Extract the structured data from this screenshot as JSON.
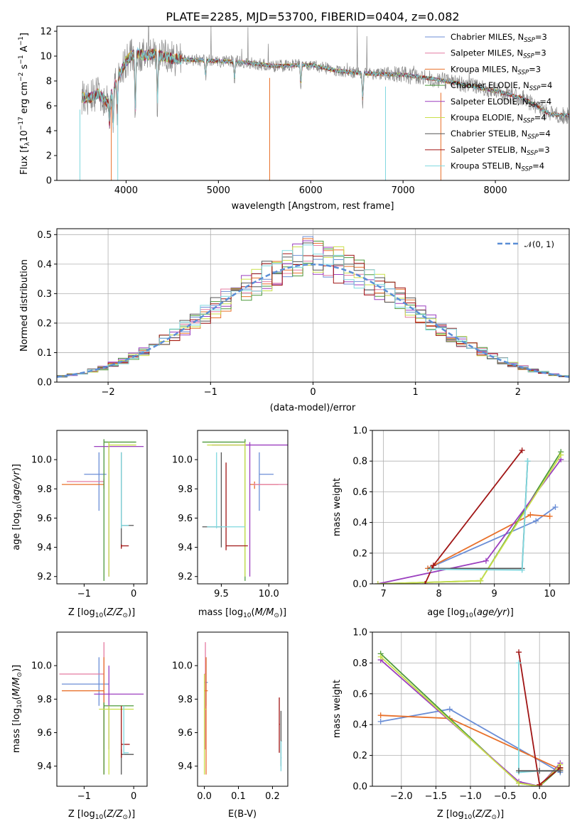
{
  "colors": {
    "chabrier_miles": "#6b8ed6",
    "salpeter_miles": "#e47ba1",
    "kroupa_miles": "#e8702a",
    "chabrier_elodie": "#4e9a3c",
    "salpeter_elodie": "#9b3fbf",
    "kroupa_elodie": "#c9e04a",
    "chabrier_stelib": "#555555",
    "salpeter_stelib": "#a01515",
    "kroupa_stelib": "#7fd8df",
    "gaussian": "#5a8ed6",
    "spectrum": "#888888"
  },
  "chart_data": [
    {
      "type": "line",
      "title": "PLATE=2285, MJD=53700, FIBERID=0404, z=0.082",
      "xlabel": "wavelength [Angstrom, rest frame]",
      "ylabel": "Flux [fλ10⁻¹⁷ erg cm⁻² s⁻¹ A⁻¹]",
      "xlim": [
        3250,
        8800
      ],
      "ylim": [
        0,
        12.4
      ],
      "xticks": [
        "4000",
        "5000",
        "6000",
        "7000",
        "8000"
      ],
      "yticks": [
        "0",
        "2",
        "4",
        "6",
        "8",
        "10",
        "12"
      ],
      "grid": false,
      "legend": "top-right",
      "legend_entries": [
        {
          "prefix": "Chabrier MILES, N",
          "sub": "SSP",
          "suffix": "=3"
        },
        {
          "prefix": "Salpeter MILES, N",
          "sub": "SSP",
          "suffix": "=3"
        },
        {
          "prefix": "Kroupa MILES, N",
          "sub": "SSP",
          "suffix": "=3"
        },
        {
          "prefix": "Chabrier ELODIE, N",
          "sub": "SSP",
          "suffix": "=4"
        },
        {
          "prefix": "Salpeter ELODIE, N",
          "sub": "SSP",
          "suffix": "=4"
        },
        {
          "prefix": "Kroupa ELODIE, N",
          "sub": "SSP",
          "suffix": "=4"
        },
        {
          "prefix": "Chabrier STELIB, N",
          "sub": "SSP",
          "suffix": "=4"
        },
        {
          "prefix": "Salpeter STELIB, N",
          "sub": "SSP",
          "suffix": "=3"
        },
        {
          "prefix": "Kroupa STELIB, N",
          "sub": "SSP",
          "suffix": "=4"
        }
      ],
      "continuum_x": [
        3520,
        3600,
        3700,
        3800,
        3900,
        4000,
        4100,
        4200,
        4300,
        4500,
        4700,
        5000,
        5300,
        5600,
        6000,
        6300,
        6600,
        7000,
        7300,
        7600,
        8000,
        8300,
        8600,
        8800
      ],
      "continuum_y": [
        6.7,
        6.6,
        7.0,
        6.2,
        8.0,
        9.6,
        10.3,
        10.0,
        10.2,
        9.8,
        9.7,
        9.6,
        9.5,
        9.2,
        9.3,
        8.8,
        8.6,
        8.5,
        8.2,
        7.8,
        7.2,
        6.6,
        5.3,
        5.2
      ],
      "dips_x": [
        3820,
        3860,
        3905,
        4100,
        4340,
        4860,
        5175,
        5893,
        6563
      ],
      "dips_y": [
        4.2,
        3.8,
        5.2,
        4.5,
        5.5,
        8.2,
        8.0,
        7.4,
        6.0
      ],
      "spikes_x": [
        3500,
        3840,
        3910,
        5555,
        6810,
        7410
      ],
      "spikes_y": [
        0.0,
        0.0,
        0.0,
        0.0,
        0.0,
        0.0
      ]
    },
    {
      "type": "bar",
      "xlabel": "(data-model)/error",
      "ylabel": "Normed distribution",
      "xlim": [
        -2.5,
        2.5
      ],
      "ylim": [
        0,
        0.52
      ],
      "xticks": [
        "−2",
        "−1",
        "0",
        "1",
        "2"
      ],
      "yticks": [
        "0.0",
        "0.1",
        "0.2",
        "0.3",
        "0.4",
        "0.5"
      ],
      "grid": true,
      "legend": "top-right",
      "gaussian_label": "𝒩(0, 1)",
      "bin_width": 0.1
    },
    {
      "type": "scatter",
      "xlabel": "Z [log10(Z/Z☉)]",
      "ylabel": "age [log10(age/yr)]",
      "xlim": [
        -1.55,
        0.27
      ],
      "ylim": [
        9.15,
        10.2
      ],
      "xticks": [
        "−1",
        "0"
      ],
      "yticks": [
        "9.2",
        "9.4",
        "9.6",
        "9.8",
        "10.0"
      ]
    },
    {
      "type": "scatter",
      "xlabel": "mass [log10(M/M☉)]",
      "xlim": [
        9.25,
        10.2
      ],
      "ylim": [
        9.15,
        10.2
      ],
      "xticks": [
        "9.5",
        "10.0"
      ],
      "yticks": [
        "9.2",
        "9.4",
        "9.6",
        "9.8",
        "10.0"
      ]
    },
    {
      "type": "line",
      "xlabel": "age [log10(age/yr)]",
      "ylabel": "mass weight",
      "xlim": [
        6.8,
        10.35
      ],
      "ylim": [
        0,
        1.0
      ],
      "xticks": [
        "7",
        "8",
        "9",
        "10"
      ],
      "yticks": [
        "0.0",
        "0.2",
        "0.4",
        "0.6",
        "0.8",
        "1.0"
      ],
      "grid": true,
      "series": [
        {
          "key": "chabrier_miles",
          "x": [
            7.8,
            9.75,
            10.1
          ],
          "y": [
            0.1,
            0.41,
            0.5
          ]
        },
        {
          "key": "kroupa_miles",
          "x": [
            7.8,
            9.65,
            10.0
          ],
          "y": [
            0.1,
            0.45,
            0.44
          ]
        },
        {
          "key": "chabrier_elodie",
          "x": [
            6.9,
            8.75,
            10.2
          ],
          "y": [
            0.0,
            0.02,
            0.86
          ]
        },
        {
          "key": "salpeter_elodie",
          "x": [
            6.9,
            8.85,
            10.2
          ],
          "y": [
            0.0,
            0.15,
            0.81
          ]
        },
        {
          "key": "kroupa_elodie",
          "x": [
            6.9,
            8.75,
            10.2
          ],
          "y": [
            0.0,
            0.02,
            0.84
          ]
        },
        {
          "key": "chabrier_stelib",
          "x": [
            7.85,
            9.5,
            9.6
          ],
          "y": [
            0.1,
            0.1,
            0.8
          ]
        },
        {
          "key": "salpeter_stelib",
          "x": [
            7.75,
            7.9,
            9.5
          ],
          "y": [
            0.0,
            0.12,
            0.87
          ]
        },
        {
          "key": "kroupa_stelib",
          "x": [
            7.85,
            9.5,
            9.6
          ],
          "y": [
            0.095,
            0.09,
            0.8
          ]
        }
      ]
    },
    {
      "type": "scatter",
      "xlabel": "Z [log10(Z/Z☉)]",
      "ylabel": "mass [log10(M/M☉)]",
      "xlim": [
        -1.55,
        0.27
      ],
      "ylim": [
        9.28,
        10.2
      ],
      "xticks": [
        "−1",
        "0"
      ],
      "yticks": [
        "9.4",
        "9.6",
        "9.8",
        "10.0"
      ]
    },
    {
      "type": "scatter",
      "xlabel": "E(B-V)",
      "xlim": [
        -0.02,
        0.245
      ],
      "ylim": [
        9.28,
        10.2
      ],
      "xticks": [
        "0.0",
        "0.1",
        "0.2"
      ],
      "yticks": [
        "9.4",
        "9.6",
        "9.8",
        "10.0"
      ]
    },
    {
      "type": "line",
      "xlabel": "Z [log10(Z/Z☉)]",
      "ylabel": "mass weight",
      "xlim": [
        -2.42,
        0.43
      ],
      "ylim": [
        0,
        1.0
      ],
      "xticks": [
        "−2.0",
        "−1.5",
        "−1.0",
        "−0.5",
        "0.0"
      ],
      "yticks": [
        "0.0",
        "0.2",
        "0.4",
        "0.6",
        "0.8",
        "1.0"
      ],
      "grid": true,
      "series": [
        {
          "key": "chabrier_miles",
          "x": [
            -2.3,
            -1.3,
            0.3
          ],
          "y": [
            0.42,
            0.5,
            0.09
          ]
        },
        {
          "key": "kroupa_miles",
          "x": [
            -2.3,
            -1.3,
            0.3
          ],
          "y": [
            0.46,
            0.44,
            0.11
          ]
        },
        {
          "key": "chabrier_elodie",
          "x": [
            -2.3,
            -0.3,
            0.0,
            0.3
          ],
          "y": [
            0.86,
            0.02,
            0.0,
            0.12
          ]
        },
        {
          "key": "salpeter_elodie",
          "x": [
            -2.3,
            -0.3,
            0.0,
            0.3
          ],
          "y": [
            0.82,
            0.03,
            0.0,
            0.15
          ]
        },
        {
          "key": "kroupa_elodie",
          "x": [
            -2.3,
            -0.3,
            0.0,
            0.3
          ],
          "y": [
            0.84,
            0.02,
            0.0,
            0.14
          ]
        },
        {
          "key": "salpeter_stelib",
          "x": [
            -0.3,
            0.0,
            0.3
          ],
          "y": [
            0.87,
            0.01,
            0.12
          ]
        },
        {
          "key": "kroupa_stelib",
          "x": [
            -0.3,
            -0.3,
            0.0,
            0.3
          ],
          "y": [
            0.8,
            0.09,
            0.1,
            0.1
          ]
        },
        {
          "key": "chabrier_stelib",
          "x": [
            -0.3,
            0.0,
            0.3
          ],
          "y": [
            0.1,
            0.1,
            0.1
          ]
        }
      ]
    }
  ]
}
